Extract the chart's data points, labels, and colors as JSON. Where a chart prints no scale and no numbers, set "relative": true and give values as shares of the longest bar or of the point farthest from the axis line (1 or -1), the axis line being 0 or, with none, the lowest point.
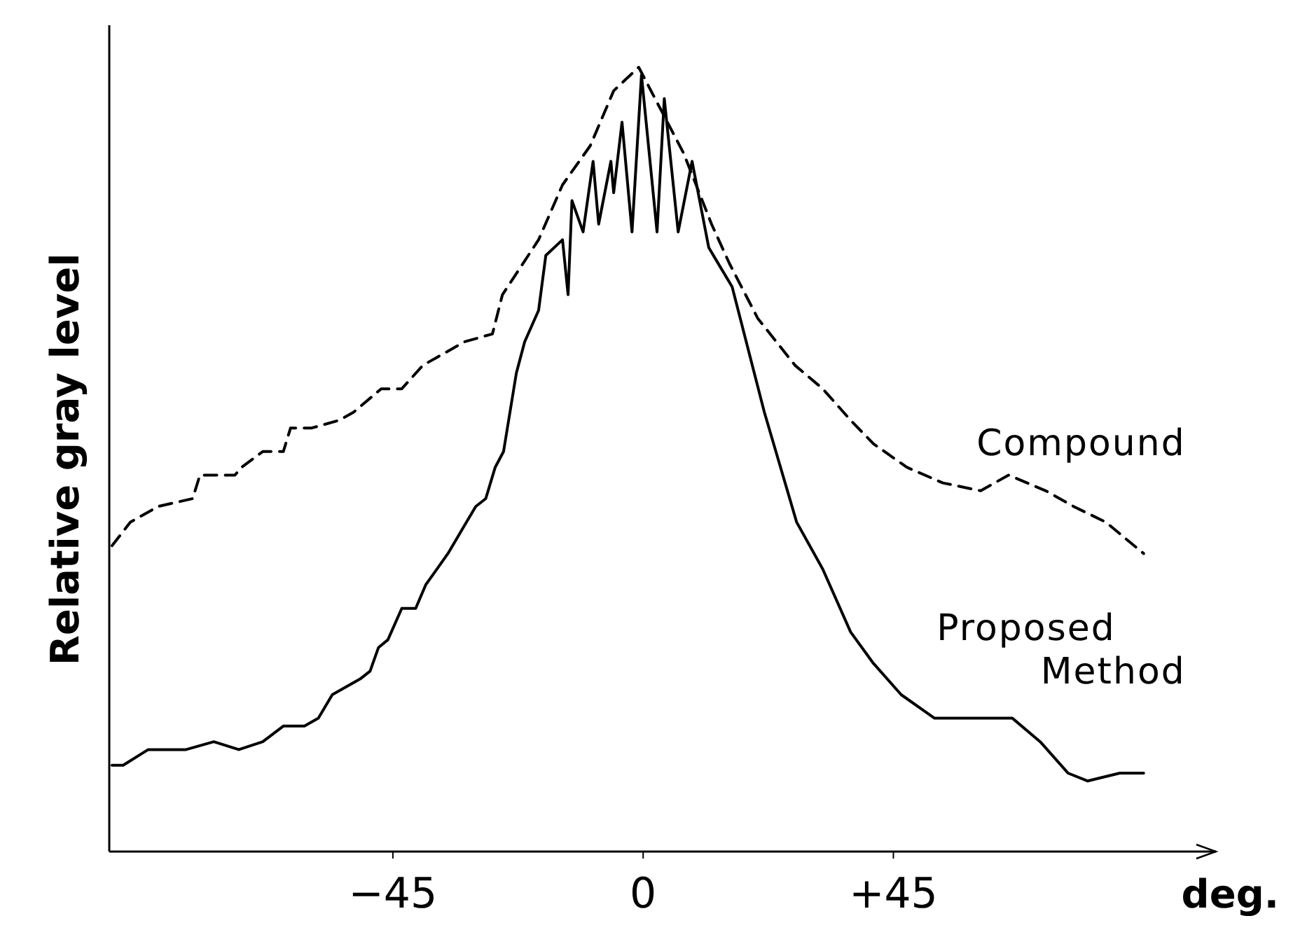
{
  "chart_data": {
    "type": "line",
    "relative": true,
    "xlabel": "deg.",
    "ylabel": "Relative gray level",
    "xlim": [
      -96,
      103
    ],
    "xticks": [
      {
        "value": -45,
        "label": "−45"
      },
      0,
      {
        "value": 45,
        "label": "+45"
      }
    ],
    "tick_labels": "x",
    "marker": "none",
    "series": [
      {
        "name": "Compound",
        "color": "#000000",
        "line_style": "dashed",
        "x": [
          -95.5,
          -92.2,
          -87.2,
          -81.0,
          -79.7,
          -77.2,
          -73.4,
          -72.2,
          -68.4,
          -64.7,
          -63.4,
          -59.6,
          -54.6,
          -52.1,
          -47.1,
          -43.4,
          -39.6,
          -37.1,
          -32.1,
          -27.1,
          -25.3,
          -18.8,
          -14.5,
          -9.5,
          -5.3,
          -0.8,
          7.3,
          12.3,
          15.5,
          20.6,
          27.3,
          32.3,
          37.3,
          41.4,
          47.4,
          53.9,
          60.7,
          65.7,
          72.4,
          77.4,
          83.2,
          90.0
        ],
        "values": [
          0.39,
          0.42,
          0.44,
          0.45,
          0.48,
          0.48,
          0.48,
          0.49,
          0.51,
          0.51,
          0.54,
          0.54,
          0.55,
          0.56,
          0.59,
          0.59,
          0.62,
          0.63,
          0.65,
          0.66,
          0.71,
          0.78,
          0.85,
          0.9,
          0.97,
          1.0,
          0.89,
          0.8,
          0.75,
          0.68,
          0.62,
          0.59,
          0.55,
          0.52,
          0.49,
          0.47,
          0.46,
          0.48,
          0.46,
          0.44,
          0.42,
          0.38
        ]
      },
      {
        "name": "Proposed Method",
        "color": "#000000",
        "line_style": "solid",
        "x": [
          -95.5,
          -93.5,
          -89.0,
          -82.2,
          -77.2,
          -72.7,
          -68.4,
          -64.7,
          -60.9,
          -58.4,
          -55.9,
          -53.4,
          -50.9,
          -49.1,
          -47.6,
          -45.9,
          -43.4,
          -40.9,
          -39.1,
          -37.1,
          -35.1,
          -32.6,
          -30.1,
          -28.3,
          -26.6,
          -25.1,
          -22.8,
          -21.3,
          -18.8,
          -17.5,
          -14.5,
          -13.5,
          -12.8,
          -10.8,
          -9.0,
          -8.0,
          -5.8,
          -5.3,
          -3.8,
          -2.0,
          -0.3,
          2.5,
          3.8,
          6.3,
          8.8,
          11.8,
          16.0,
          21.8,
          27.6,
          32.3,
          37.3,
          41.4,
          46.4,
          52.4,
          55.6,
          66.4,
          71.4,
          76.4,
          79.9,
          85.7,
          90.0
        ],
        "values": [
          0.11,
          0.11,
          0.13,
          0.13,
          0.14,
          0.13,
          0.14,
          0.16,
          0.16,
          0.17,
          0.2,
          0.21,
          0.22,
          0.23,
          0.26,
          0.27,
          0.31,
          0.31,
          0.34,
          0.36,
          0.38,
          0.41,
          0.44,
          0.45,
          0.49,
          0.51,
          0.61,
          0.65,
          0.69,
          0.76,
          0.78,
          0.71,
          0.83,
          0.79,
          0.88,
          0.8,
          0.88,
          0.84,
          0.93,
          0.79,
          0.99,
          0.79,
          0.96,
          0.79,
          0.88,
          0.77,
          0.72,
          0.56,
          0.42,
          0.36,
          0.28,
          0.24,
          0.2,
          0.17,
          0.17,
          0.17,
          0.14,
          0.1,
          0.09,
          0.1,
          0.1
        ]
      }
    ]
  }
}
